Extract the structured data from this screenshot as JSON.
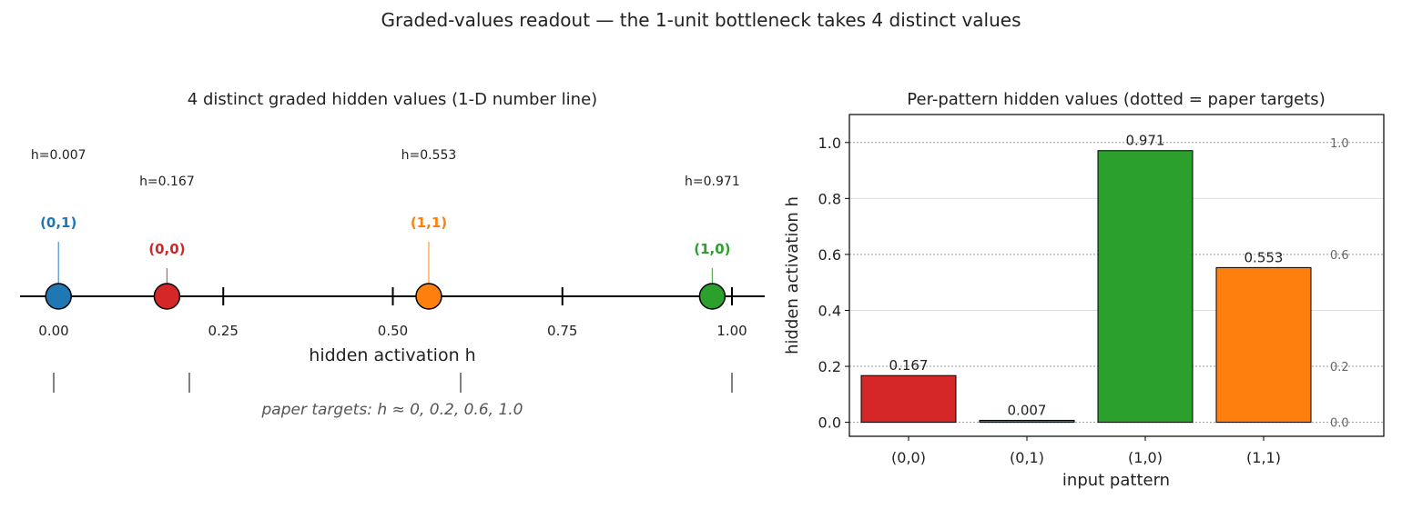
{
  "figure": {
    "suptitle": "Graded-values readout — the 1-unit bottleneck takes 4 distinct values"
  },
  "colors": {
    "p00": "#d62728",
    "p01": "#1f77b4",
    "p10": "#2ca02c",
    "p11": "#ff7f0e",
    "target_marks": "#808080",
    "grid": "#999999"
  },
  "chart_data": [
    {
      "type": "scatter",
      "title": "4 distinct graded hidden values (1-D number line)",
      "xlabel": "hidden activation  h",
      "xlim": [
        -0.05,
        1.05
      ],
      "xticks": [
        0.0,
        0.25,
        0.5,
        0.75,
        1.0
      ],
      "xtick_labels": [
        "0.00",
        "0.25",
        "0.50",
        "0.75",
        "1.00"
      ],
      "points": [
        {
          "pattern": "(0,0)",
          "h": 0.167,
          "value_label": "h=0.167",
          "color_key": "p00"
        },
        {
          "pattern": "(0,1)",
          "h": 0.007,
          "value_label": "h=0.007",
          "color_key": "p01"
        },
        {
          "pattern": "(1,0)",
          "h": 0.971,
          "value_label": "h=0.971",
          "color_key": "p10"
        },
        {
          "pattern": "(1,1)",
          "h": 0.553,
          "value_label": "h=0.553",
          "color_key": "p11"
        }
      ],
      "paper_targets": [
        0.0,
        0.2,
        0.6,
        1.0
      ],
      "paper_targets_caption": "paper targets:  h ≈ 0,  0.2,  0.6,  1.0"
    },
    {
      "type": "bar",
      "title": "Per-pattern hidden values  (dotted = paper targets)",
      "xlabel": "input pattern",
      "ylabel": "hidden activation  h",
      "ylim": [
        -0.05,
        1.1
      ],
      "yticks": [
        0.0,
        0.2,
        0.4,
        0.6,
        0.8,
        1.0
      ],
      "ytick_labels": [
        "0.0",
        "0.2",
        "0.4",
        "0.6",
        "0.8",
        "1.0"
      ],
      "categories": [
        "(0,0)",
        "(0,1)",
        "(1,0)",
        "(1,1)"
      ],
      "values": [
        0.167,
        0.007,
        0.971,
        0.553
      ],
      "value_labels": [
        "0.167",
        "0.007",
        "0.971",
        "0.553"
      ],
      "bar_color_keys": [
        "p00",
        "p01",
        "p10",
        "p11"
      ],
      "target_lines": [
        0.0,
        0.2,
        0.6,
        1.0
      ],
      "target_labels": [
        "0.0",
        "0.2",
        "0.6",
        "1.0"
      ],
      "grid": true
    }
  ]
}
